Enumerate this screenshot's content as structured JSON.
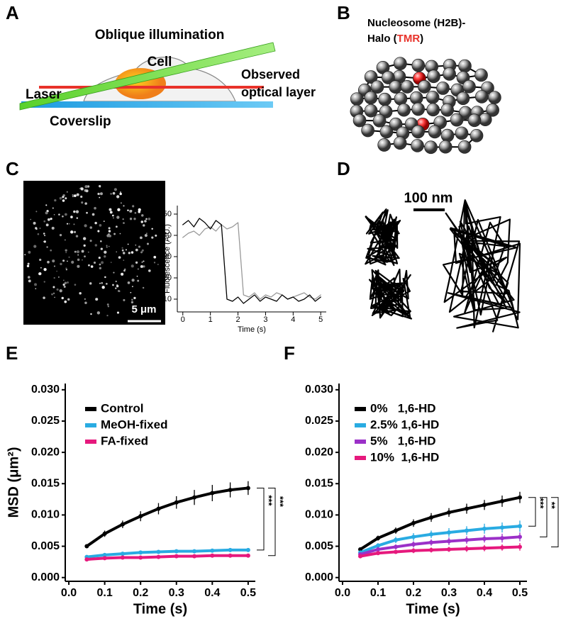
{
  "panels": {
    "A": {
      "label": "A",
      "title": "Oblique illumination",
      "cell": "Cell",
      "laser": "Laser",
      "observed": [
        "Observed",
        "optical layer"
      ],
      "coverslip": "Coverslip"
    },
    "B": {
      "label": "B",
      "line1": "Nucleosome (H2B)-",
      "line2": [
        "Halo (",
        "TMR",
        ")"
      ]
    },
    "C": {
      "label": "C",
      "scale_bar": "5 μm"
    },
    "D": {
      "label": "D",
      "scale_bar": "100 nm"
    },
    "E": {
      "label": "E"
    },
    "F": {
      "label": "F"
    }
  },
  "chart_data": [
    {
      "type": "line",
      "xlabel": "Time (s)",
      "ylabel": "Fluorescence (A.U.)",
      "x": [
        0,
        0.2,
        0.4,
        0.6,
        0.8,
        1.0,
        1.2,
        1.4,
        1.6,
        1.8,
        2.0,
        2.2,
        2.4,
        2.6,
        2.8,
        3.0,
        3.2,
        3.4,
        3.6,
        3.8,
        4.0,
        4.2,
        4.4,
        4.6,
        4.8,
        5.0
      ],
      "xlim": [
        -0.2,
        5.2
      ],
      "xticks": [
        0,
        1,
        2,
        3,
        4,
        5
      ],
      "ylim": [
        4,
        54
      ],
      "yticks": [
        10,
        20,
        30,
        40,
        50
      ],
      "series": [
        {
          "color": "#999999",
          "values": [
            39,
            41,
            42,
            40,
            43,
            44,
            42,
            45,
            43,
            44,
            46,
            12,
            11,
            13,
            10,
            12,
            11,
            13,
            12,
            10,
            11,
            12,
            13,
            11,
            10,
            12
          ]
        },
        {
          "color": "#000000",
          "values": [
            45,
            47,
            44,
            48,
            46,
            43,
            47,
            45,
            10,
            9,
            11,
            8,
            10,
            12,
            9,
            11,
            10,
            9,
            12,
            10,
            11,
            9,
            10,
            12,
            9,
            11
          ]
        }
      ]
    },
    {
      "type": "line",
      "xlabel": "Time (s)",
      "ylabel": "MSD (μm²)",
      "x": [
        0.05,
        0.1,
        0.15,
        0.2,
        0.25,
        0.3,
        0.35,
        0.4,
        0.45,
        0.5
      ],
      "xlim": [
        -0.01,
        0.52
      ],
      "xticks": [
        {
          "value": 0,
          "label": "0.0"
        },
        {
          "value": 0.1,
          "label": "0.1"
        },
        {
          "value": 0.2,
          "label": "0.2"
        },
        {
          "value": 0.3,
          "label": "0.3"
        },
        {
          "value": 0.4,
          "label": "0.4"
        },
        {
          "value": 0.5,
          "label": "0.5"
        }
      ],
      "ylim": [
        -0.0006,
        0.031
      ],
      "yticks": [
        {
          "value": 0,
          "label": "0.000"
        },
        {
          "value": 0.005,
          "label": "0.005"
        },
        {
          "value": 0.01,
          "label": "0.010"
        },
        {
          "value": 0.015,
          "label": "0.015"
        },
        {
          "value": 0.02,
          "label": "0.020"
        },
        {
          "value": 0.025,
          "label": "0.025"
        },
        {
          "value": 0.03,
          "label": "0.030"
        }
      ],
      "series": [
        {
          "name": "Control",
          "color": "#000000",
          "values": [
            0.005,
            0.007,
            0.0085,
            0.0098,
            0.011,
            0.012,
            0.0128,
            0.0135,
            0.014,
            0.0143
          ],
          "errors": [
            0.0003,
            0.0005,
            0.0006,
            0.0008,
            0.0009,
            0.001,
            0.0012,
            0.0013,
            0.0012,
            0.0011
          ]
        },
        {
          "name": "MeOH-fixed",
          "color": "#29abe2",
          "values": [
            0.0033,
            0.0036,
            0.0038,
            0.004,
            0.0041,
            0.0042,
            0.0042,
            0.0043,
            0.0044,
            0.0044
          ],
          "errors": [
            0.0002,
            0.0002,
            0.0002,
            0.0002,
            0.0002,
            0.0002,
            0.0002,
            0.0002,
            0.0002,
            0.0002
          ]
        },
        {
          "name": "FA-fixed",
          "color": "#e6197d",
          "values": [
            0.0029,
            0.0031,
            0.0032,
            0.0032,
            0.0033,
            0.0034,
            0.0034,
            0.0035,
            0.0035,
            0.0035
          ],
          "errors": [
            0.0001,
            0.0001,
            0.0001,
            0.0001,
            0.0001,
            0.0001,
            0.0001,
            0.0001,
            0.0001,
            0.0001
          ]
        }
      ],
      "annotations": [
        "***",
        "***"
      ]
    },
    {
      "type": "line",
      "xlabel": "Time (s)",
      "x": [
        0.05,
        0.1,
        0.15,
        0.2,
        0.25,
        0.3,
        0.35,
        0.4,
        0.45,
        0.5
      ],
      "xlim": [
        -0.01,
        0.52
      ],
      "xticks": [
        {
          "value": 0,
          "label": "0.0"
        },
        {
          "value": 0.1,
          "label": "0.1"
        },
        {
          "value": 0.2,
          "label": "0.2"
        },
        {
          "value": 0.3,
          "label": "0.3"
        },
        {
          "value": 0.4,
          "label": "0.4"
        },
        {
          "value": 0.5,
          "label": "0.5"
        }
      ],
      "ylim": [
        -0.0006,
        0.031
      ],
      "yticks": [
        {
          "value": 0,
          "label": "0.000"
        },
        {
          "value": 0.005,
          "label": "0.005"
        },
        {
          "value": 0.01,
          "label": "0.010"
        },
        {
          "value": 0.015,
          "label": "0.015"
        },
        {
          "value": 0.02,
          "label": "0.020"
        },
        {
          "value": 0.025,
          "label": "0.025"
        },
        {
          "value": 0.03,
          "label": "0.030"
        }
      ],
      "series": [
        {
          "name": "0%   1,6-HD",
          "color": "#000000",
          "values": [
            0.0045,
            0.0063,
            0.0075,
            0.0087,
            0.0096,
            0.0104,
            0.011,
            0.0116,
            0.0122,
            0.0128
          ],
          "errors": [
            0.0003,
            0.0004,
            0.0005,
            0.0006,
            0.0007,
            0.0007,
            0.0008,
            0.0008,
            0.0009,
            0.0009
          ]
        },
        {
          "name": "2.5% 1,6-HD",
          "color": "#29abe2",
          "values": [
            0.004,
            0.0051,
            0.006,
            0.0065,
            0.0069,
            0.0072,
            0.0075,
            0.0078,
            0.008,
            0.0082
          ],
          "errors": [
            0.0003,
            0.0004,
            0.0005,
            0.0006,
            0.0006,
            0.0007,
            0.0007,
            0.0008,
            0.0008,
            0.0009
          ]
        },
        {
          "name": "5%   1,6-HD",
          "color": "#9b30c8",
          "values": [
            0.0037,
            0.0045,
            0.0049,
            0.0053,
            0.0056,
            0.0058,
            0.006,
            0.0062,
            0.0063,
            0.0065
          ],
          "errors": [
            0.0003,
            0.0004,
            0.0004,
            0.0005,
            0.0005,
            0.0006,
            0.0006,
            0.0006,
            0.0007,
            0.0007
          ]
        },
        {
          "name": "10%  1,6-HD",
          "color": "#e6197d",
          "values": [
            0.0034,
            0.0039,
            0.0041,
            0.0043,
            0.0044,
            0.0045,
            0.0046,
            0.0047,
            0.0048,
            0.0049
          ],
          "errors": [
            0.0002,
            0.0003,
            0.0003,
            0.0004,
            0.0004,
            0.0004,
            0.0005,
            0.0005,
            0.0005,
            0.0006
          ]
        }
      ],
      "annotations": [
        "***",
        "**",
        "***"
      ]
    }
  ]
}
